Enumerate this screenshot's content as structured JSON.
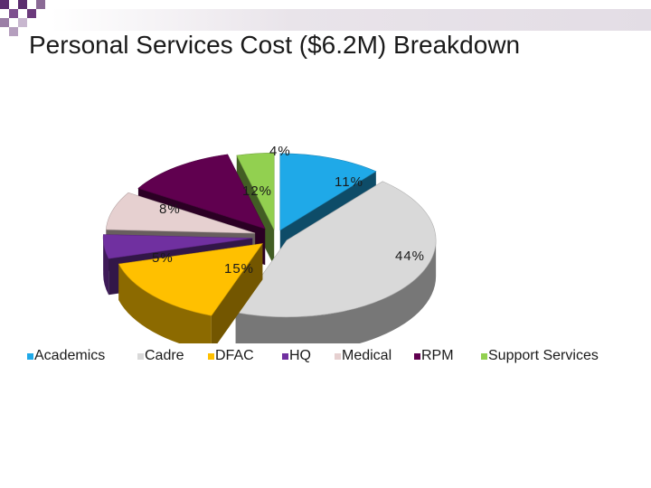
{
  "slide": {
    "title": "Personal Services Cost ($6.2M) Breakdown"
  },
  "chart_data": {
    "type": "pie",
    "style": "3d-exploded",
    "title": "",
    "legend_position": "bottom",
    "slices": [
      {
        "name": "Academics",
        "value": 11,
        "label": "11%",
        "color": "#1fa9e8"
      },
      {
        "name": "Cadre",
        "value": 44,
        "label": "44%",
        "color": "#d9d9d9"
      },
      {
        "name": "DFAC",
        "value": 15,
        "label": "15%",
        "color": "#ffc000"
      },
      {
        "name": "HQ",
        "value": 5,
        "label": "5%",
        "color": "#7030a0"
      },
      {
        "name": "Medical",
        "value": 8,
        "label": "8%",
        "color": "#e6d0d0"
      },
      {
        "name": "RPM",
        "value": 12,
        "label": "12%",
        "color": "#60004f"
      },
      {
        "name": "Support Services",
        "value": 4,
        "label": "4%",
        "color": "#92d050"
      }
    ]
  }
}
